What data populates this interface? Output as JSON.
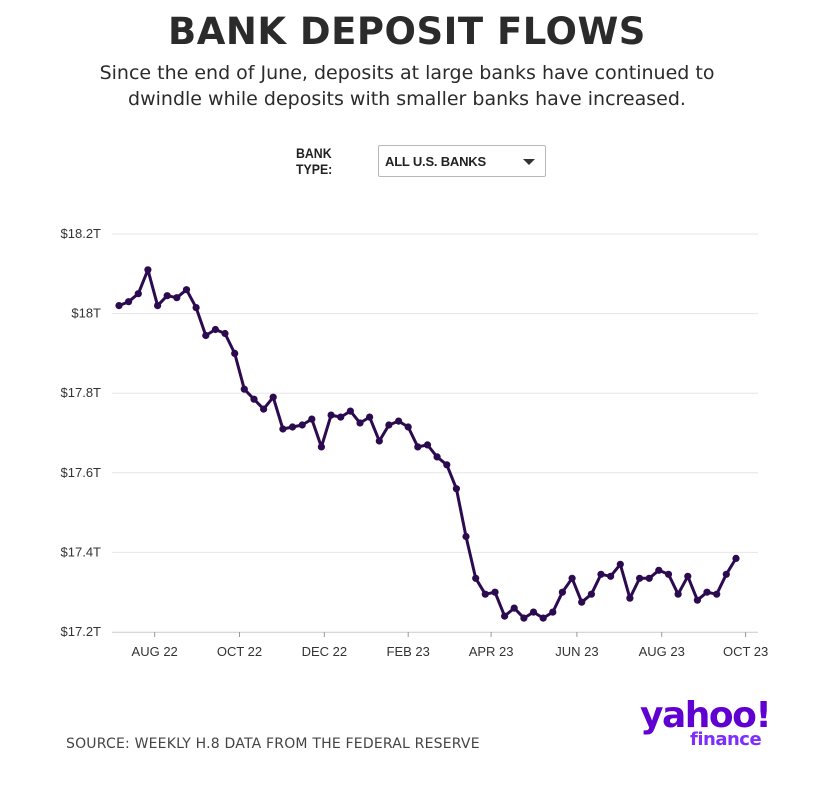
{
  "header": {
    "title": "BANK DEPOSIT FLOWS",
    "subtitle": "Since the end of June, deposits at large banks have continued to dwindle while deposits with smaller banks have increased."
  },
  "filter": {
    "label": "BANK TYPE:",
    "selected": "ALL U.S. BANKS"
  },
  "footer": {
    "source": "SOURCE: WEEKLY H.8 DATA FROM THE FEDERAL RESERVE"
  },
  "logo": {
    "brand": "yahoo!",
    "product": "finance"
  },
  "colors": {
    "line": "#2c0a4f",
    "grid": "#e6e6e6",
    "brand": "#5f01d1"
  },
  "chart_data": {
    "type": "line",
    "title": "BANK DEPOSIT FLOWS",
    "ylim": [
      17.2,
      18.2
    ],
    "y_ticks": [
      {
        "value": 17.2,
        "label": "$17.2T"
      },
      {
        "value": 17.4,
        "label": "$17.4T"
      },
      {
        "value": 17.6,
        "label": "$17.6T"
      },
      {
        "value": 17.8,
        "label": "$17.8T"
      },
      {
        "value": 18.0,
        "label": "$18T"
      },
      {
        "value": 18.2,
        "label": "$18.2T"
      }
    ],
    "x_ticks": [
      {
        "week": 3.7,
        "label": "AUG 22"
      },
      {
        "week": 12.5,
        "label": "OCT 22"
      },
      {
        "week": 21.3,
        "label": "DEC 22"
      },
      {
        "week": 30.0,
        "label": "FEB 23"
      },
      {
        "week": 38.6,
        "label": "APR 23"
      },
      {
        "week": 47.5,
        "label": "JUN 23"
      },
      {
        "week": 56.3,
        "label": "AUG 23"
      },
      {
        "week": 65.0,
        "label": "OCT 23"
      }
    ],
    "grid": true,
    "series": [
      {
        "values": [
          18.02,
          18.03,
          18.05,
          18.11,
          18.02,
          18.045,
          18.04,
          18.06,
          18.015,
          17.945,
          17.96,
          17.95,
          17.9,
          17.81,
          17.785,
          17.76,
          17.79,
          17.71,
          17.715,
          17.72,
          17.735,
          17.665,
          17.745,
          17.74,
          17.755,
          17.725,
          17.74,
          17.68,
          17.72,
          17.73,
          17.715,
          17.665,
          17.67,
          17.64,
          17.62,
          17.56,
          17.44,
          17.335,
          17.295,
          17.3,
          17.24,
          17.26,
          17.235,
          17.25,
          17.235,
          17.25,
          17.3,
          17.335,
          17.275,
          17.295,
          17.345,
          17.34,
          17.37,
          17.285,
          17.335,
          17.335,
          17.355,
          17.345,
          17.295,
          17.34,
          17.28,
          17.3,
          17.295,
          17.345,
          17.385
        ]
      }
    ]
  }
}
